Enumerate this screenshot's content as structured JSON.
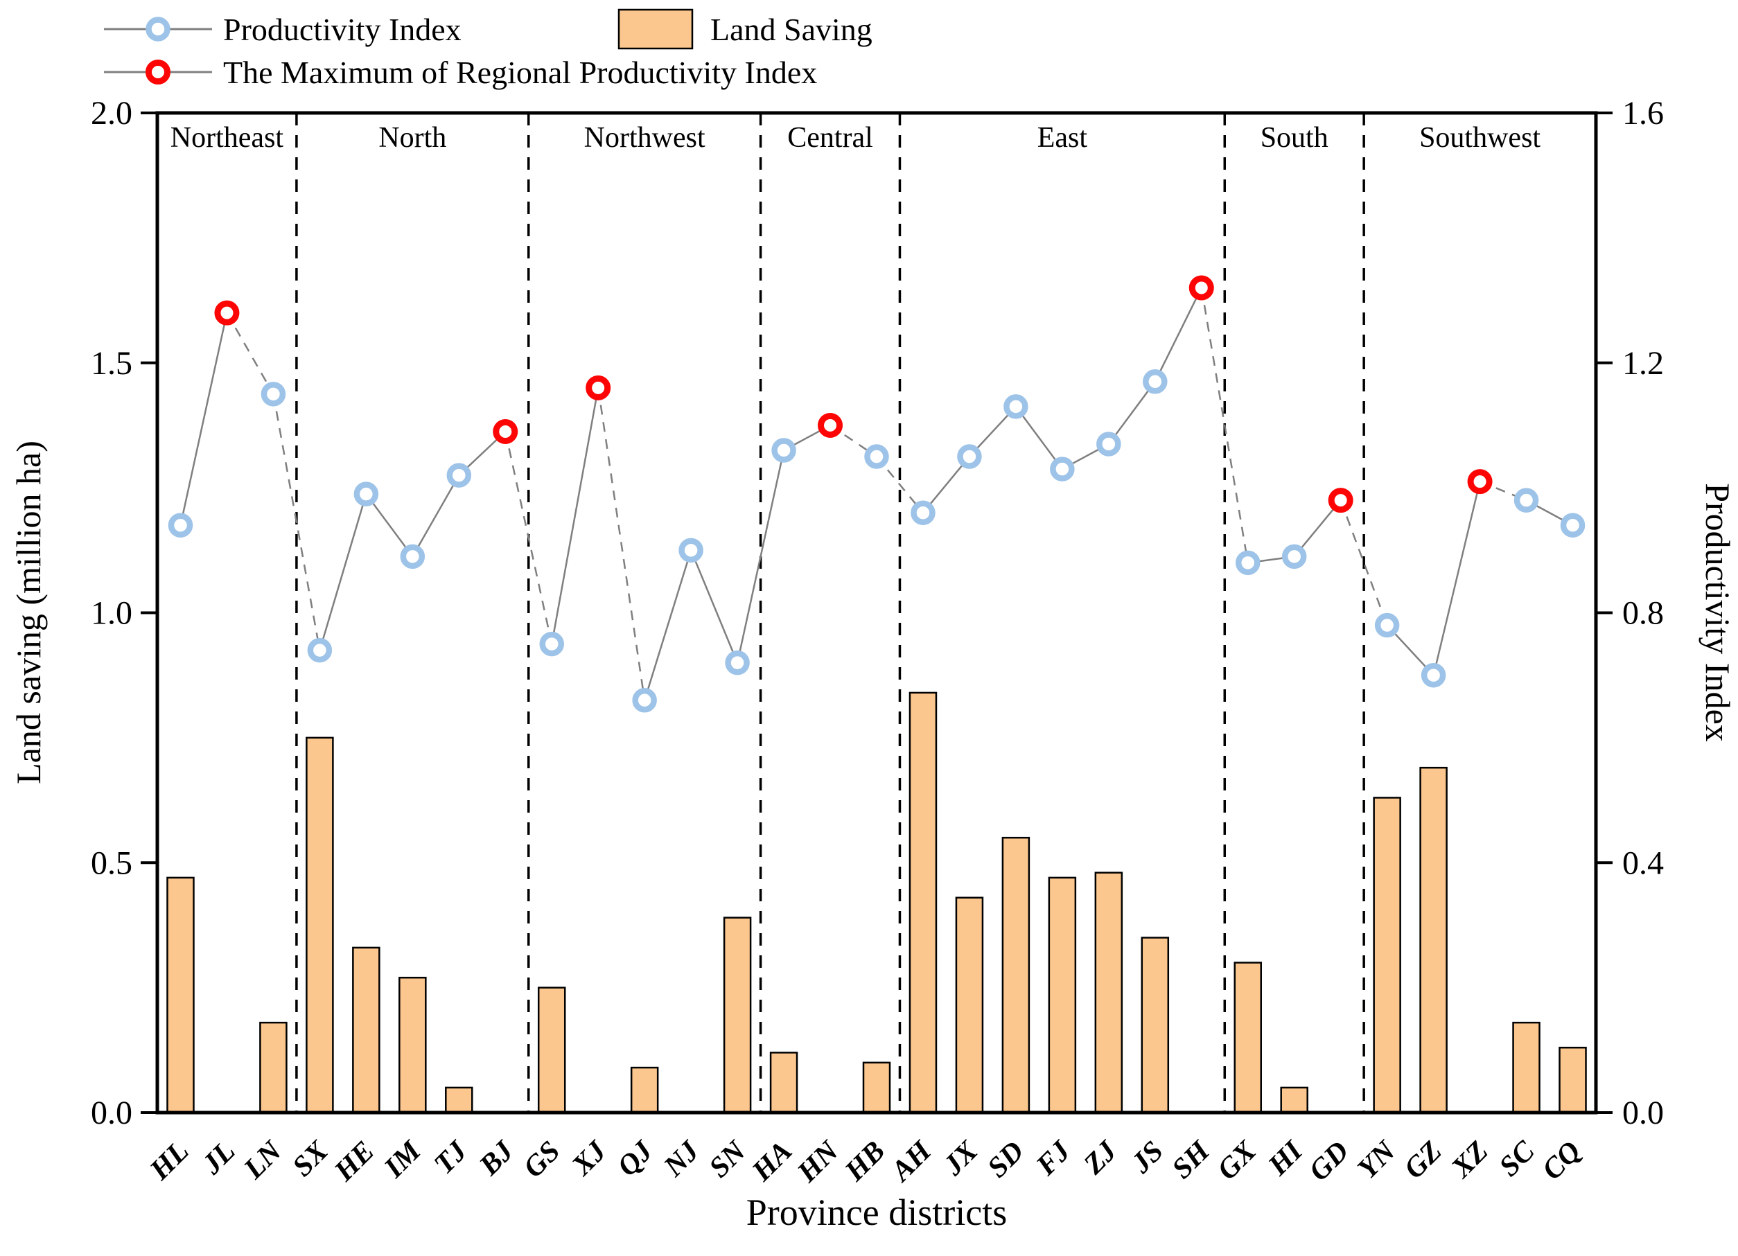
{
  "legend": {
    "productivity_label": "Productivity Index",
    "land_label": "Land Saving",
    "max_label": "The Maximum of Regional Productivity Index"
  },
  "axes": {
    "left_title": "Land saving (million ha)",
    "right_title": "Productivity Index",
    "x_title": "Province districts",
    "left_ticks": [
      "0.0",
      "0.5",
      "1.0",
      "1.5",
      "2.0"
    ],
    "left_tick_values": [
      0.0,
      0.5,
      1.0,
      1.5,
      2.0
    ],
    "right_ticks": [
      "0.0",
      "0.4",
      "0.8",
      "1.2",
      "1.6"
    ],
    "right_tick_values": [
      0.0,
      0.4,
      0.8,
      1.2,
      1.6
    ]
  },
  "chart_data": {
    "type": "bar+line",
    "title": "",
    "xlabel": "Province districts",
    "ylabel_left": "Land saving (million ha)",
    "ylabel_right": "Productivity Index",
    "ylim_left": [
      0.0,
      2.0
    ],
    "ylim_right": [
      0.0,
      1.6
    ],
    "legend_position": "top-left",
    "grid": false,
    "categories": [
      "HL",
      "JL",
      "LN",
      "SX",
      "HE",
      "IM",
      "TJ",
      "BJ",
      "GS",
      "XJ",
      "QJ",
      "NJ",
      "SN",
      "HA",
      "HN",
      "HB",
      "AH",
      "JX",
      "SD",
      "FJ",
      "ZJ",
      "JS",
      "SH",
      "GX",
      "HI",
      "GD",
      "YN",
      "GZ",
      "XZ",
      "SC",
      "CQ"
    ],
    "series": [
      {
        "name": "Land Saving",
        "type": "bar",
        "axis": "left",
        "values": [
          0.47,
          0,
          0.18,
          0.75,
          0.33,
          0.27,
          0.05,
          0,
          0.25,
          0,
          0.09,
          0,
          0.39,
          0.12,
          0,
          0.1,
          0.84,
          0.43,
          0.55,
          0.47,
          0.48,
          0.35,
          0,
          0.3,
          0.05,
          0,
          0.63,
          0.69,
          0,
          0.18,
          0.13
        ]
      },
      {
        "name": "Productivity Index",
        "type": "line+marker",
        "axis": "right",
        "values": [
          0.94,
          1.28,
          1.15,
          0.74,
          0.99,
          0.89,
          1.02,
          1.09,
          0.75,
          1.16,
          0.66,
          0.9,
          0.72,
          1.06,
          1.1,
          1.05,
          0.96,
          1.05,
          1.13,
          1.03,
          1.07,
          1.17,
          1.32,
          0.88,
          0.89,
          0.98,
          0.78,
          0.7,
          1.01,
          0.98,
          0.94
        ]
      }
    ],
    "regional_max_indices": [
      1,
      7,
      9,
      14,
      22,
      25,
      28
    ],
    "regional_max_provinces": [
      "JL",
      "BJ",
      "XJ",
      "HN",
      "SH",
      "GD",
      "XZ"
    ],
    "dashed_segments_from_index": [
      1,
      2,
      7,
      9,
      14,
      15,
      22,
      25,
      28
    ],
    "regions": [
      {
        "label": "Northeast",
        "count": 3,
        "provinces": [
          "HL",
          "JL",
          "LN"
        ]
      },
      {
        "label": "North",
        "count": 5,
        "provinces": [
          "SX",
          "HE",
          "IM",
          "TJ",
          "BJ"
        ]
      },
      {
        "label": "Northwest",
        "count": 5,
        "provinces": [
          "GS",
          "XJ",
          "QJ",
          "NJ",
          "SN"
        ]
      },
      {
        "label": "Central",
        "count": 3,
        "provinces": [
          "HA",
          "HN",
          "HB"
        ]
      },
      {
        "label": "East",
        "count": 7,
        "provinces": [
          "AH",
          "JX",
          "SD",
          "FJ",
          "ZJ",
          "JS",
          "SH"
        ]
      },
      {
        "label": "South",
        "count": 3,
        "provinces": [
          "GX",
          "HI",
          "GD"
        ]
      },
      {
        "label": "Southwest",
        "count": 5,
        "provinces": [
          "YN",
          "GZ",
          "XZ",
          "SC",
          "CQ"
        ]
      }
    ]
  },
  "colors": {
    "bar_fill": "#FBC78E",
    "bar_edge": "#000000",
    "line": "#7F7F7F",
    "marker_ring": "#9DC3E8",
    "marker_max_ring": "#FE0505",
    "marker_fill": "#FFFFFF",
    "axis": "#000000",
    "divider": "#000000",
    "background": "#FFFFFF"
  }
}
